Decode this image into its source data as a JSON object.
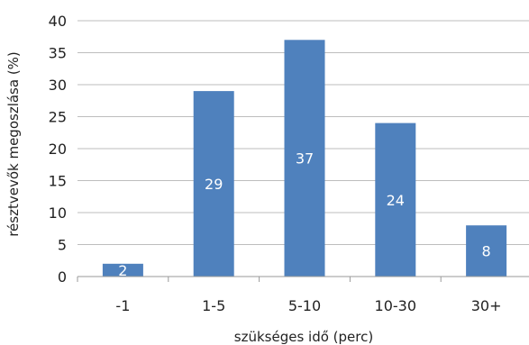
{
  "chart_data": {
    "type": "bar",
    "categories": [
      "-1",
      "1-5",
      "5-10",
      "10-30",
      "30+"
    ],
    "values": [
      2,
      29,
      37,
      24,
      8
    ],
    "title": "",
    "xlabel": "szükséges idő (perc)",
    "ylabel": "résztvevők megoszlása (%)",
    "ylim": [
      0,
      40
    ],
    "yticks": [
      0,
      5,
      10,
      15,
      20,
      25,
      30,
      35,
      40
    ],
    "grid": true,
    "legend": "none",
    "bar_color": "#4f81bd",
    "label_color": "#ffffff"
  }
}
